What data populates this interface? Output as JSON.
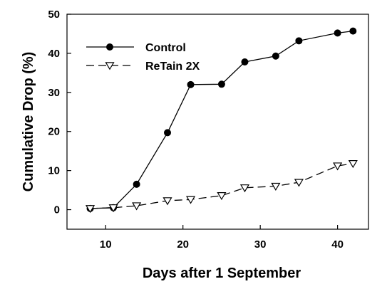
{
  "chart_data": {
    "type": "line",
    "title": "",
    "xlabel": "Days after 1 September",
    "ylabel": "Cumulative Drop (%)",
    "xlim": [
      5,
      44
    ],
    "ylim": [
      -5,
      50
    ],
    "xticks": [
      10,
      20,
      30,
      40
    ],
    "yticks": [
      0,
      10,
      20,
      30,
      40,
      50
    ],
    "grid": false,
    "legend_position": "top-left",
    "series": [
      {
        "name": "Control",
        "marker": "filled-circle",
        "line_style": "solid",
        "color": "#000000",
        "x": [
          8,
          11,
          14,
          18,
          21,
          25,
          28,
          32,
          35,
          40,
          42
        ],
        "y": [
          0.3,
          0.5,
          6.5,
          19.7,
          32.0,
          32.1,
          37.8,
          39.3,
          43.2,
          45.2,
          45.7
        ]
      },
      {
        "name": "ReTain 2X",
        "marker": "open-triangle-down",
        "line_style": "dashed",
        "color": "#000000",
        "x": [
          8,
          11,
          14,
          18,
          21,
          25,
          28,
          32,
          35,
          40,
          42
        ],
        "y": [
          0.3,
          0.5,
          1.0,
          2.3,
          2.6,
          3.6,
          5.6,
          6.0,
          7.0,
          11.2,
          11.8
        ]
      }
    ]
  }
}
